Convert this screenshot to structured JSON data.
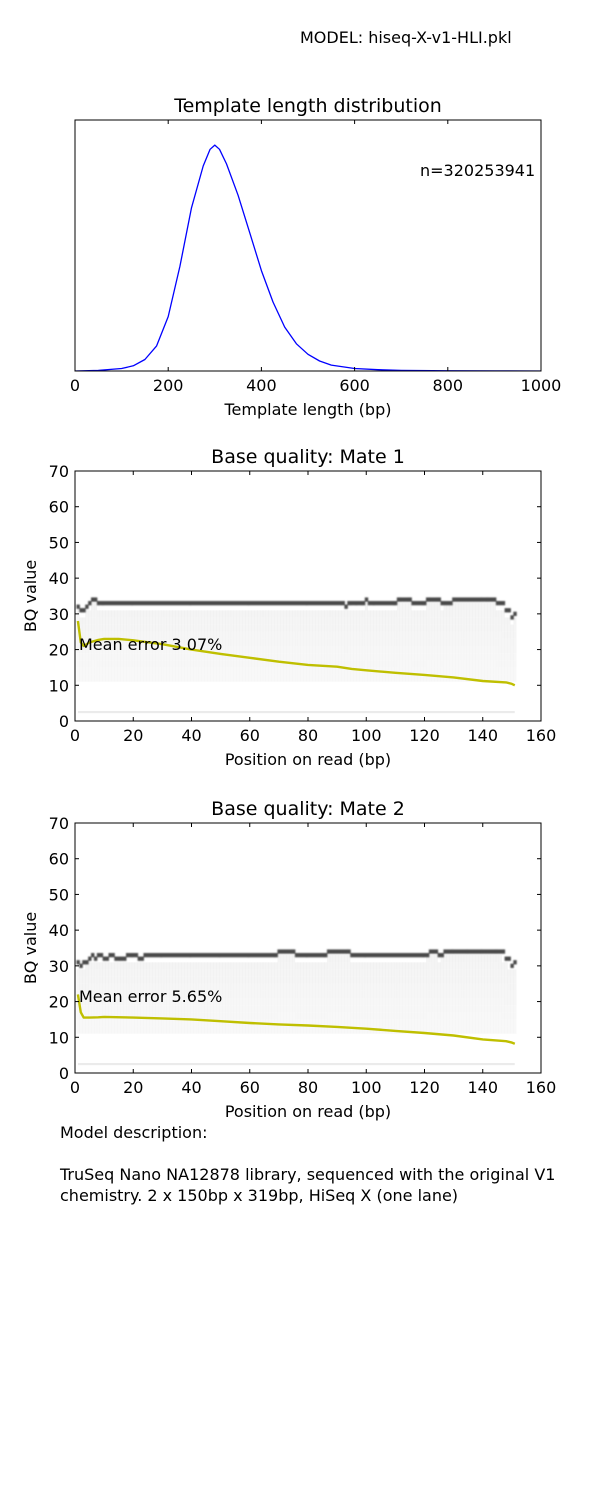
{
  "header": {
    "model_label": "MODEL: hiseq-X-v1-HLI.pkl"
  },
  "footer": {
    "description_label": "Model description:",
    "description_text": "TruSeq Nano NA12878 library, sequenced with the original V1 chemistry. 2 x 150bp x 319bp, HiSeq X (one lane)"
  },
  "colors": {
    "tlen_line": "#0000ff",
    "mean_error_line": "#bfbf00",
    "heat_band": "#4a4a4a",
    "axes": "#000000"
  },
  "chart_data": [
    {
      "type": "line",
      "title": "Template length distribution",
      "xlabel": "Template length (bp)",
      "ylabel": "",
      "xlim": [
        0,
        1000
      ],
      "xticks": [
        0,
        200,
        400,
        600,
        800,
        1000
      ],
      "ylim": [
        0,
        1.2
      ],
      "yticks": [],
      "annotation": "n=320253941",
      "series": [
        {
          "x": [
            0,
            50,
            100,
            125,
            150,
            175,
            200,
            225,
            250,
            275,
            290,
            300,
            310,
            325,
            350,
            375,
            400,
            425,
            450,
            475,
            500,
            525,
            550,
            600,
            650,
            700,
            800,
            900,
            1000
          ],
          "values": [
            0.0,
            0.003,
            0.012,
            0.025,
            0.055,
            0.12,
            0.26,
            0.5,
            0.78,
            0.98,
            1.06,
            1.08,
            1.06,
            0.99,
            0.84,
            0.66,
            0.48,
            0.33,
            0.21,
            0.13,
            0.08,
            0.048,
            0.028,
            0.012,
            0.006,
            0.003,
            0.001,
            0.0005,
            0.0
          ]
        }
      ]
    },
    {
      "type": "heatmap",
      "title": "Base quality: Mate 1",
      "xlabel": "Position on read (bp)",
      "ylabel": "BQ value",
      "xlim": [
        0,
        160
      ],
      "xticks": [
        0,
        20,
        40,
        60,
        80,
        100,
        120,
        140,
        160
      ],
      "ylim": [
        0,
        70
      ],
      "yticks": [
        0,
        10,
        20,
        30,
        40,
        50,
        60,
        70
      ],
      "annotation": "Mean error 3.07%",
      "series": [
        {
          "name": "BQ mode",
          "x": [
            1,
            2,
            3,
            4,
            5,
            6,
            7,
            8,
            10,
            20,
            40,
            60,
            80,
            92,
            93,
            94,
            95,
            97,
            99,
            100,
            101,
            103,
            110,
            111,
            112,
            115,
            116,
            120,
            121,
            122,
            125,
            126,
            130,
            140,
            142,
            145,
            148,
            150,
            151
          ],
          "values": [
            32,
            31,
            31,
            32,
            33,
            34,
            34,
            33,
            33,
            33,
            33,
            33,
            33,
            33,
            32,
            33,
            33,
            33,
            33,
            34,
            33,
            33,
            33,
            34,
            34,
            34,
            33,
            33,
            34,
            34,
            34,
            33,
            34,
            34,
            34,
            33,
            31,
            29,
            30
          ]
        },
        {
          "name": "Mean error (%)",
          "x": [
            1,
            2,
            3,
            5,
            8,
            10,
            15,
            20,
            30,
            40,
            50,
            60,
            70,
            80,
            90,
            95,
            100,
            110,
            120,
            130,
            140,
            148,
            150,
            151
          ],
          "values": [
            28,
            22,
            21,
            22,
            22.7,
            23,
            23,
            22.6,
            21.5,
            20,
            18.8,
            17.7,
            16.6,
            15.7,
            15.2,
            14.6,
            14.2,
            13.5,
            12.9,
            12.2,
            11.2,
            10.8,
            10.4,
            10
          ]
        }
      ]
    },
    {
      "type": "heatmap",
      "title": "Base quality: Mate 2",
      "xlabel": "Position on read (bp)",
      "ylabel": "BQ value",
      "xlim": [
        0,
        160
      ],
      "xticks": [
        0,
        20,
        40,
        60,
        80,
        100,
        120,
        140,
        160
      ],
      "ylim": [
        0,
        70
      ],
      "yticks": [
        0,
        10,
        20,
        30,
        40,
        50,
        60,
        70
      ],
      "annotation": "Mean error 5.65%",
      "series": [
        {
          "name": "BQ mode",
          "x": [
            1,
            2,
            3,
            5,
            6,
            7,
            8,
            10,
            12,
            14,
            16,
            18,
            20,
            22,
            24,
            30,
            40,
            50,
            60,
            69,
            70,
            75,
            76,
            80,
            86,
            87,
            94,
            95,
            100,
            120,
            122,
            125,
            127,
            130,
            135,
            140,
            145,
            148,
            150,
            151
          ],
          "values": [
            31,
            30,
            31,
            32,
            33,
            32,
            33,
            32,
            33,
            32,
            32,
            33,
            33,
            32,
            33,
            33,
            33,
            33,
            33,
            33,
            34,
            34,
            33,
            33,
            33,
            34,
            34,
            33,
            33,
            33,
            34,
            33,
            34,
            34,
            34,
            34,
            34,
            32,
            30,
            31
          ]
        },
        {
          "name": "Mean error (%)",
          "x": [
            1,
            2,
            3,
            5,
            8,
            10,
            20,
            30,
            40,
            50,
            60,
            70,
            80,
            90,
            100,
            110,
            120,
            130,
            140,
            148,
            150,
            151
          ],
          "values": [
            22,
            17,
            15.5,
            15.5,
            15.6,
            15.7,
            15.5,
            15.3,
            15,
            14.5,
            14,
            13.6,
            13.3,
            12.9,
            12.4,
            11.8,
            11.2,
            10.5,
            9.4,
            8.9,
            8.5,
            8.2
          ]
        }
      ]
    }
  ]
}
